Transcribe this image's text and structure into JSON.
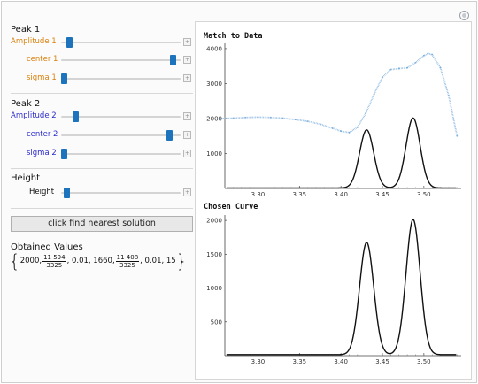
{
  "controls": {
    "peak1": {
      "title": "Peak 1",
      "color": "#d9820d",
      "sliders": [
        {
          "label": "Amplitude 1",
          "value": 0.05
        },
        {
          "label": "center 1",
          "value": 0.96
        },
        {
          "label": "sigma 1",
          "value": 0.0
        }
      ]
    },
    "peak2": {
      "title": "Peak 2",
      "color": "#2c2ccc",
      "sliders": [
        {
          "label": "Amplitude 2",
          "value": 0.1
        },
        {
          "label": "center 2",
          "value": 0.93
        },
        {
          "label": "sigma 2",
          "value": 0.0
        }
      ]
    },
    "height": {
      "title": "Height",
      "color": "#111111",
      "sliders": [
        {
          "label": "Height",
          "value": 0.02
        }
      ]
    },
    "button_label": "click find nearest solution",
    "obtained_title": "Obtained Values",
    "obtained": {
      "v1": "2000,",
      "f1_num": "11 594",
      "f1_den": "3325",
      "v2": ", 0.01, 1660,",
      "f2_num": "11 408",
      "f2_den": "3325",
      "v3": ", 0.01, 15"
    }
  },
  "chart_data": [
    {
      "type": "scatter",
      "title": "Match to Data",
      "x_ticks": [
        "3.30",
        "3.35",
        "3.40",
        "3.45",
        "3.50"
      ],
      "y_ticks": [
        "1000",
        "2000",
        "3000",
        "4000"
      ],
      "xlim": [
        3.26,
        3.545
      ],
      "ylim": [
        0,
        4150
      ],
      "series": [
        {
          "color": "#7aaedc",
          "x": [
            3.255,
            3.27,
            3.285,
            3.3,
            3.315,
            3.33,
            3.345,
            3.36,
            3.375,
            3.39,
            3.4,
            3.41,
            3.42,
            3.43,
            3.44,
            3.45,
            3.46,
            3.47,
            3.48,
            3.49,
            3.5,
            3.505,
            3.51,
            3.52,
            3.53,
            3.54
          ],
          "y": [
            2000,
            2010,
            2030,
            2040,
            2030,
            2010,
            1970,
            1920,
            1840,
            1720,
            1640,
            1600,
            1750,
            2150,
            2700,
            3180,
            3400,
            3430,
            3450,
            3600,
            3800,
            3860,
            3830,
            3450,
            2650,
            1500
          ]
        },
        {
          "color": "#111111",
          "peaks": [
            {
              "amplitude": 1660,
              "center": 3.431,
              "sigma": 0.0085
            },
            {
              "amplitude": 2000,
              "center": 3.487,
              "sigma": 0.0085
            }
          ],
          "baseline": 15
        }
      ]
    },
    {
      "type": "line",
      "title": "Chosen Curve",
      "x_ticks": [
        "3.30",
        "3.35",
        "3.40",
        "3.45",
        "3.50"
      ],
      "y_ticks": [
        "500",
        "1000",
        "1500",
        "2000"
      ],
      "xlim": [
        3.26,
        3.545
      ],
      "ylim": [
        0,
        2080
      ],
      "series": [
        {
          "color": "#111111",
          "peaks": [
            {
              "amplitude": 1660,
              "center": 3.431,
              "sigma": 0.0085
            },
            {
              "amplitude": 2000,
              "center": 3.487,
              "sigma": 0.0085
            }
          ],
          "baseline": 15
        }
      ]
    }
  ]
}
